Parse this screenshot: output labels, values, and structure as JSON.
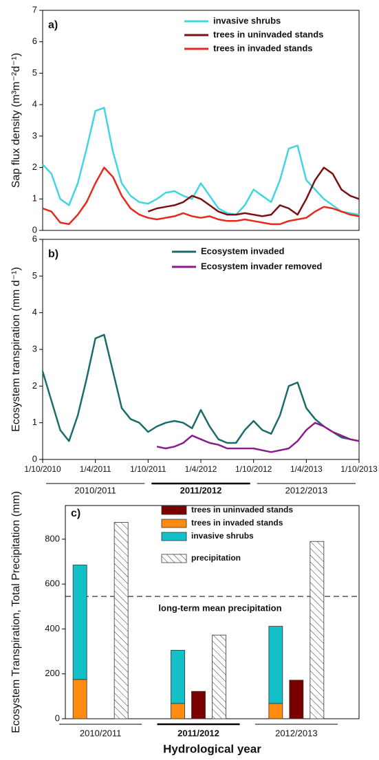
{
  "chart_data": [
    {
      "type": "line",
      "panel_label": "a)",
      "y_label": "Sap flux density (m³m⁻²d⁻¹)",
      "xlim": [
        "1/10/2010",
        "1/10/2013"
      ],
      "ylim": [
        0,
        7
      ],
      "yticks": [
        0,
        1,
        2,
        3,
        4,
        5,
        6,
        7
      ],
      "x": [
        "1/10/2010",
        "1/11/2010",
        "1/12/2010",
        "1/1/2011",
        "1/2/2011",
        "1/3/2011",
        "1/4/2011",
        "1/5/2011",
        "1/6/2011",
        "1/7/2011",
        "1/8/2011",
        "1/9/2011",
        "1/10/2011",
        "1/11/2011",
        "1/12/2011",
        "1/1/2012",
        "1/2/2012",
        "1/3/2012",
        "1/4/2012",
        "1/5/2012",
        "1/6/2012",
        "1/7/2012",
        "1/8/2012",
        "1/9/2012",
        "1/10/2012",
        "1/11/2012",
        "1/12/2012",
        "1/1/2013",
        "1/2/2013",
        "1/3/2013",
        "1/4/2013",
        "1/5/2013",
        "1/6/2013",
        "1/7/2013",
        "1/8/2013",
        "1/9/2013",
        "1/10/2013"
      ],
      "series": [
        {
          "name": "invasive shrubs",
          "color": "#3fd6e2",
          "values": [
            2.1,
            1.8,
            1.0,
            0.8,
            1.5,
            2.6,
            3.8,
            3.9,
            2.5,
            1.5,
            1.1,
            0.9,
            0.85,
            1.0,
            1.2,
            1.25,
            1.1,
            1.0,
            1.5,
            1.1,
            0.7,
            0.55,
            0.5,
            0.8,
            1.3,
            1.1,
            0.9,
            1.6,
            2.6,
            2.7,
            1.6,
            1.3,
            1.0,
            0.8,
            0.6,
            0.55,
            0.5
          ]
        },
        {
          "name": "trees in uninvaded stands",
          "color": "#7a1010",
          "values": [
            null,
            null,
            null,
            null,
            null,
            null,
            null,
            null,
            null,
            null,
            null,
            null,
            0.6,
            0.7,
            0.75,
            0.8,
            0.9,
            1.1,
            1.0,
            0.8,
            0.6,
            0.5,
            0.5,
            0.55,
            0.5,
            0.45,
            0.5,
            0.8,
            0.7,
            0.5,
            1.0,
            1.6,
            2.0,
            1.8,
            1.3,
            1.1,
            1.0
          ]
        },
        {
          "name": "trees in invaded stands",
          "color": "#e8281a",
          "values": [
            0.7,
            0.6,
            0.25,
            0.2,
            0.5,
            0.9,
            1.5,
            2.0,
            1.7,
            1.1,
            0.7,
            0.5,
            0.4,
            0.35,
            0.4,
            0.45,
            0.55,
            0.45,
            0.4,
            0.45,
            0.35,
            0.3,
            0.3,
            0.35,
            0.3,
            0.25,
            0.2,
            0.2,
            0.3,
            0.35,
            0.4,
            0.6,
            0.75,
            0.7,
            0.6,
            0.5,
            0.45
          ]
        }
      ]
    },
    {
      "type": "line",
      "panel_label": "b)",
      "y_label": "Ecosystem transpiration (mm d⁻¹)",
      "xlim": [
        "1/10/2010",
        "1/10/2013"
      ],
      "ylim": [
        0,
        6
      ],
      "yticks": [
        0,
        1,
        2,
        3,
        4,
        5,
        6
      ],
      "xticks": [
        "1/10/2010",
        "1/4/2011",
        "1/10/2011",
        "1/4/2012",
        "1/10/2012",
        "1/4/2013",
        "1/10/2013"
      ],
      "periods": [
        "2010/2011",
        "2011/2012",
        "2012/2013"
      ],
      "x": [
        "1/10/2010",
        "1/11/2010",
        "1/12/2010",
        "1/1/2011",
        "1/2/2011",
        "1/3/2011",
        "1/4/2011",
        "1/5/2011",
        "1/6/2011",
        "1/7/2011",
        "1/8/2011",
        "1/9/2011",
        "1/10/2011",
        "1/11/2011",
        "1/12/2011",
        "1/1/2012",
        "1/2/2012",
        "1/3/2012",
        "1/4/2012",
        "1/5/2012",
        "1/6/2012",
        "1/7/2012",
        "1/8/2012",
        "1/9/2012",
        "1/10/2012",
        "1/11/2012",
        "1/12/2012",
        "1/1/2013",
        "1/2/2013",
        "1/3/2013",
        "1/4/2013",
        "1/5/2013",
        "1/6/2013",
        "1/7/2013",
        "1/8/2013",
        "1/9/2013",
        "1/10/2013"
      ],
      "series": [
        {
          "name": "Ecosystem invaded",
          "color": "#1a6b6b",
          "values": [
            2.4,
            1.6,
            0.8,
            0.5,
            1.2,
            2.2,
            3.3,
            3.4,
            2.4,
            1.4,
            1.1,
            1.0,
            0.75,
            0.9,
            1.0,
            1.05,
            1.0,
            0.85,
            1.35,
            0.9,
            0.55,
            0.45,
            0.45,
            0.8,
            1.05,
            0.8,
            0.7,
            1.2,
            2.0,
            2.1,
            1.4,
            1.1,
            0.9,
            0.75,
            0.6,
            0.55,
            0.5
          ]
        },
        {
          "name": "Ecosystem invader removed",
          "color": "#8b1a8b",
          "values": [
            null,
            null,
            null,
            null,
            null,
            null,
            null,
            null,
            null,
            null,
            null,
            null,
            null,
            0.35,
            0.3,
            0.35,
            0.45,
            0.65,
            0.55,
            0.45,
            0.4,
            0.3,
            0.3,
            0.3,
            0.3,
            0.25,
            0.2,
            0.25,
            0.3,
            0.5,
            0.8,
            1.0,
            0.9,
            0.75,
            0.65,
            0.55,
            0.5
          ]
        }
      ]
    },
    {
      "type": "bar",
      "panel_label": "c)",
      "y_label": "Ecosystem Transpiration, Total Precipitation (mm)",
      "x_label": "Hydrological year",
      "ylim": [
        0,
        950
      ],
      "yticks": [
        0,
        200,
        400,
        600,
        800
      ],
      "categories": [
        "2010/2011",
        "2011/2012",
        "2012/2013"
      ],
      "reference_line": {
        "value": 545,
        "label": "long-term mean precipitation"
      },
      "series": [
        {
          "name": "trees in uninvaded stands",
          "color": "#7a0000",
          "values": [
            null,
            122,
            172
          ]
        },
        {
          "name": "trees in invaded stands",
          "color": "#ff8c10",
          "stacked": true,
          "values": [
            175,
            68,
            68
          ]
        },
        {
          "name": "invasive shrubs",
          "color": "#14c0c8",
          "stacked": true,
          "values": [
            510,
            237,
            344
          ]
        },
        {
          "name": "precipitation",
          "color": "#ffffff",
          "hatch": true,
          "values": [
            875,
            373,
            790
          ]
        }
      ]
    }
  ]
}
